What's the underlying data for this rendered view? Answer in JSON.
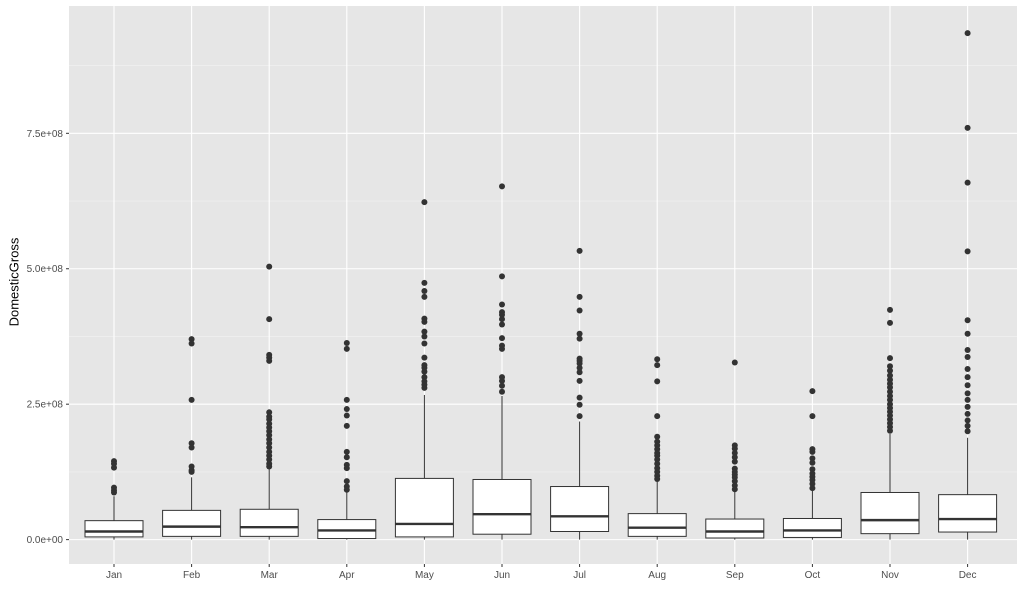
{
  "chart_data": {
    "type": "box",
    "xlabel": "",
    "ylabel": "DomesticGross",
    "ylim": [
      -45000000,
      985000000
    ],
    "y_ticks": [
      0,
      250000000,
      500000000,
      750000000
    ],
    "y_tick_labels": [
      "0.0e+00",
      "2.5e+08",
      "5.0e+08",
      "7.5e+08"
    ],
    "grid": true,
    "background": "#e6e6e6",
    "categories": [
      "Jan",
      "Feb",
      "Mar",
      "Apr",
      "May",
      "Jun",
      "Jul",
      "Aug",
      "Sep",
      "Oct",
      "Nov",
      "Dec"
    ],
    "boxes": [
      {
        "q1": 5000000,
        "median": 15000000,
        "q3": 35000000,
        "low": 0,
        "high": 80000000
      },
      {
        "q1": 6000000,
        "median": 24000000,
        "q3": 54000000,
        "low": 0,
        "high": 115000000
      },
      {
        "q1": 6000000,
        "median": 23000000,
        "q3": 56000000,
        "low": 0,
        "high": 130000000
      },
      {
        "q1": 2000000,
        "median": 17000000,
        "q3": 37000000,
        "low": 0,
        "high": 88000000
      },
      {
        "q1": 5000000,
        "median": 29000000,
        "q3": 113000000,
        "low": 0,
        "high": 267000000
      },
      {
        "q1": 10000000,
        "median": 47000000,
        "q3": 111000000,
        "low": 0,
        "high": 265000000
      },
      {
        "q1": 15000000,
        "median": 43000000,
        "q3": 98000000,
        "low": 0,
        "high": 218000000
      },
      {
        "q1": 6000000,
        "median": 22000000,
        "q3": 48000000,
        "low": 0,
        "high": 107000000
      },
      {
        "q1": 3000000,
        "median": 15000000,
        "q3": 38000000,
        "low": 0,
        "high": 90000000
      },
      {
        "q1": 4000000,
        "median": 17000000,
        "q3": 39000000,
        "low": 0,
        "high": 90000000
      },
      {
        "q1": 11000000,
        "median": 36000000,
        "q3": 87000000,
        "low": 0,
        "high": 195000000
      },
      {
        "q1": 14000000,
        "median": 38000000,
        "q3": 83000000,
        "low": 0,
        "high": 188000000
      }
    ],
    "outliers": [
      [
        145000000,
        140000000,
        133000000,
        96000000,
        91000000,
        87000000
      ],
      [
        370000000,
        362000000,
        258000000,
        178000000,
        170000000,
        135000000,
        128000000,
        125000000
      ],
      [
        504000000,
        407000000,
        341000000,
        336000000,
        330000000,
        235000000,
        227000000,
        222000000,
        214000000,
        207000000,
        200000000,
        193000000,
        185000000,
        178000000,
        170000000,
        162000000,
        155000000,
        148000000,
        140000000,
        135000000
      ],
      [
        363000000,
        352000000,
        258000000,
        241000000,
        229000000,
        210000000,
        162000000,
        152000000,
        138000000,
        132000000,
        108000000,
        98000000,
        92000000
      ],
      [
        623000000,
        474000000,
        459000000,
        448000000,
        408000000,
        402000000,
        384000000,
        375000000,
        362000000,
        336000000,
        322000000,
        317000000,
        310000000,
        300000000,
        292000000,
        286000000,
        280000000
      ],
      [
        652000000,
        486000000,
        434000000,
        420000000,
        415000000,
        407000000,
        397000000,
        372000000,
        358000000,
        352000000,
        300000000,
        293000000,
        284000000,
        273000000
      ],
      [
        533000000,
        448000000,
        423000000,
        380000000,
        371000000,
        334000000,
        330000000,
        325000000,
        317000000,
        309000000,
        293000000,
        262000000,
        249000000,
        228000000
      ],
      [
        333000000,
        322000000,
        292000000,
        228000000,
        190000000,
        181000000,
        174000000,
        167000000,
        160000000,
        155000000,
        148000000,
        140000000,
        132000000,
        125000000,
        118000000,
        112000000
      ],
      [
        327000000,
        174000000,
        168000000,
        160000000,
        152000000,
        144000000,
        131000000,
        125000000,
        120000000,
        115000000,
        108000000,
        100000000,
        93000000
      ],
      [
        274000000,
        228000000,
        167000000,
        162000000,
        150000000,
        142000000,
        130000000,
        122000000,
        116000000,
        110000000,
        103000000,
        95000000
      ],
      [
        424000000,
        400000000,
        335000000,
        320000000,
        312000000,
        303000000,
        295000000,
        288000000,
        281000000,
        273000000,
        265000000,
        258000000,
        250000000,
        243000000,
        236000000,
        229000000,
        222000000,
        215000000,
        208000000,
        201000000
      ],
      [
        935000000,
        760000000,
        659000000,
        532000000,
        405000000,
        380000000,
        350000000,
        337000000,
        315000000,
        300000000,
        285000000,
        270000000,
        258000000,
        245000000,
        232000000,
        220000000,
        210000000,
        200000000
      ]
    ]
  }
}
